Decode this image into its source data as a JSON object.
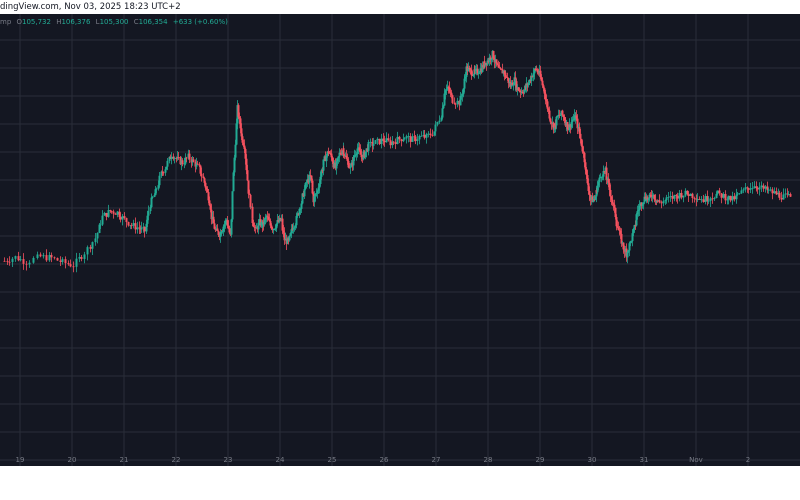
{
  "source_line": "dingView.com, Nov 03, 2025 18:23 UTC+2",
  "ohlc": {
    "prefix": "mp",
    "open_label": "O",
    "open": "105,732",
    "high_label": "H",
    "high": "106,376",
    "low_label": "L",
    "low": "105,300",
    "close_label": "C",
    "close": "106,354",
    "change": "+633 (+0.60%)"
  },
  "colors": {
    "background": "#141722",
    "grid": "#2a2e39",
    "up": "#22ab94",
    "down": "#f7525f",
    "axis_text": "#787b86"
  },
  "chart_data": {
    "type": "candlestick",
    "title": "",
    "xlabel": "",
    "ylabel": "",
    "grid": true,
    "x_tick_labels": [
      "19",
      "20",
      "21",
      "22",
      "23",
      "24",
      "25",
      "26",
      "27",
      "28",
      "29",
      "30",
      "31",
      "Nov",
      "2"
    ],
    "ylim": [
      0,
      100
    ],
    "series": [
      {
        "values": [
          [
            0.0,
            29.5
          ],
          [
            0.3,
            30.8
          ],
          [
            0.6,
            29.2
          ],
          [
            1.0,
            31.0
          ],
          [
            1.3,
            30.5
          ],
          [
            1.6,
            29.0
          ],
          [
            1.9,
            28.0
          ],
          [
            2.2,
            32.5
          ],
          [
            2.5,
            37.5
          ],
          [
            2.7,
            45.0
          ],
          [
            2.9,
            47.0
          ],
          [
            3.1,
            46.5
          ],
          [
            3.3,
            44.0
          ],
          [
            3.5,
            42.0
          ],
          [
            3.7,
            41.0
          ],
          [
            3.85,
            40.0
          ],
          [
            4.0,
            49.5
          ],
          [
            4.15,
            53.5
          ],
          [
            4.3,
            60.0
          ],
          [
            4.45,
            63.0
          ],
          [
            4.6,
            67.0
          ],
          [
            4.75,
            65.0
          ],
          [
            4.9,
            64.0
          ],
          [
            5.05,
            66.0
          ],
          [
            5.2,
            64.0
          ],
          [
            5.35,
            62.0
          ],
          [
            5.5,
            57.0
          ],
          [
            5.6,
            52.0
          ],
          [
            5.7,
            45.0
          ],
          [
            5.8,
            40.0
          ],
          [
            5.9,
            39.0
          ],
          [
            6.0,
            41.0
          ],
          [
            6.1,
            44.0
          ],
          [
            6.2,
            38.0
          ],
          [
            6.3,
            60.0
          ],
          [
            6.4,
            83.0
          ],
          [
            6.5,
            74.0
          ],
          [
            6.6,
            70.0
          ],
          [
            6.7,
            54.0
          ],
          [
            6.8,
            45.0
          ],
          [
            6.9,
            40.0
          ],
          [
            7.0,
            43.0
          ],
          [
            7.1,
            42.0
          ],
          [
            7.2,
            45.0
          ],
          [
            7.3,
            42.0
          ],
          [
            7.4,
            41.0
          ],
          [
            7.5,
            43.0
          ],
          [
            7.6,
            44.0
          ],
          [
            7.7,
            37.0
          ],
          [
            7.8,
            36.0
          ],
          [
            7.9,
            41.0
          ],
          [
            8.0,
            43.0
          ],
          [
            8.1,
            48.0
          ],
          [
            8.2,
            52.0
          ],
          [
            8.3,
            57.0
          ],
          [
            8.4,
            59.0
          ],
          [
            8.5,
            51.0
          ],
          [
            8.6,
            54.0
          ],
          [
            8.7,
            61.0
          ],
          [
            8.8,
            65.0
          ],
          [
            8.9,
            68.0
          ],
          [
            9.0,
            65.0
          ],
          [
            9.1,
            62.0
          ],
          [
            9.2,
            67.0
          ],
          [
            9.3,
            69.0
          ],
          [
            9.4,
            65.0
          ],
          [
            9.5,
            62.0
          ],
          [
            9.6,
            66.0
          ],
          [
            9.7,
            69.0
          ],
          [
            9.8,
            66.0
          ],
          [
            9.9,
            67.0
          ],
          [
            10.0,
            70.0
          ],
          [
            10.2,
            71.0
          ],
          [
            10.4,
            72.0
          ],
          [
            10.6,
            71.0
          ],
          [
            10.8,
            72.0
          ],
          [
            11.0,
            73.0
          ],
          [
            11.2,
            72.0
          ],
          [
            11.4,
            73.0
          ],
          [
            11.6,
            73.0
          ],
          [
            11.8,
            75.0
          ],
          [
            12.0,
            81.0
          ],
          [
            12.1,
            89.0
          ],
          [
            12.2,
            90.0
          ],
          [
            12.3,
            86.0
          ],
          [
            12.5,
            85.0
          ],
          [
            12.6,
            90.0
          ],
          [
            12.7,
            97.0
          ],
          [
            12.8,
            96.0
          ],
          [
            12.9,
            95.5
          ],
          [
            13.0,
            96.0
          ],
          [
            13.1,
            97.0
          ],
          [
            13.2,
            99.0
          ],
          [
            13.3,
            100.0
          ],
          [
            13.4,
            102.0
          ],
          [
            13.5,
            99.0
          ],
          [
            13.6,
            96.0
          ],
          [
            13.7,
            96.0
          ],
          [
            13.8,
            94.0
          ],
          [
            13.9,
            91.0
          ],
          [
            14.0,
            93.0
          ],
          [
            14.1,
            90.0
          ],
          [
            14.2,
            89.0
          ],
          [
            14.3,
            90.0
          ],
          [
            14.4,
            92.0
          ],
          [
            14.5,
            95.0
          ],
          [
            14.6,
            97.0
          ],
          [
            14.7,
            95.0
          ],
          [
            14.8,
            90.0
          ],
          [
            14.9,
            85.0
          ],
          [
            15.0,
            79.0
          ],
          [
            15.1,
            76.0
          ],
          [
            15.2,
            80.0
          ],
          [
            15.3,
            81.0
          ],
          [
            15.4,
            79.0
          ],
          [
            15.5,
            76.0
          ],
          [
            15.6,
            79.0
          ],
          [
            15.7,
            80.0
          ],
          [
            15.8,
            74.0
          ],
          [
            15.9,
            67.0
          ],
          [
            16.0,
            59.0
          ],
          [
            16.1,
            51.0
          ],
          [
            16.2,
            51.0
          ],
          [
            16.3,
            56.0
          ],
          [
            16.4,
            60.0
          ],
          [
            16.5,
            61.0
          ],
          [
            16.6,
            56.0
          ],
          [
            16.7,
            50.0
          ],
          [
            16.8,
            44.0
          ],
          [
            16.9,
            39.0
          ],
          [
            17.0,
            34.0
          ],
          [
            17.1,
            32.0
          ],
          [
            17.2,
            36.0
          ],
          [
            17.3,
            41.0
          ],
          [
            17.4,
            47.0
          ],
          [
            17.5,
            50.0
          ],
          [
            17.6,
            52.0
          ],
          [
            17.7,
            51.0
          ],
          [
            17.8,
            53.0
          ],
          [
            17.9,
            51.0
          ],
          [
            18.0,
            50.0
          ],
          [
            18.2,
            51.0
          ],
          [
            18.4,
            52.0
          ],
          [
            18.6,
            53.0
          ],
          [
            18.8,
            53.0
          ],
          [
            19.0,
            52.0
          ],
          [
            19.2,
            51.0
          ],
          [
            19.4,
            52.0
          ],
          [
            19.6,
            53.0
          ],
          [
            19.8,
            52.0
          ],
          [
            20.0,
            51.0
          ],
          [
            20.2,
            53.0
          ],
          [
            20.4,
            55.0
          ],
          [
            20.6,
            56.0
          ],
          [
            20.8,
            55.0
          ],
          [
            21.0,
            54.0
          ],
          [
            21.2,
            53.0
          ],
          [
            21.4,
            52.0
          ],
          [
            21.6,
            52.0
          ]
        ]
      }
    ]
  }
}
